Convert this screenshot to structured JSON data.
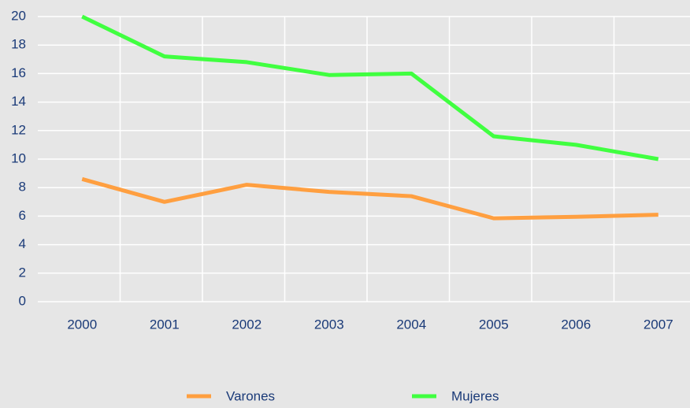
{
  "chart_data": {
    "type": "line",
    "categories": [
      "2000",
      "2001",
      "2002",
      "2003",
      "2004",
      "2005",
      "2006",
      "2007"
    ],
    "series": [
      {
        "name": "Varones",
        "color": "#ff9f40",
        "values": [
          8.6,
          7.0,
          8.2,
          7.7,
          7.4,
          5.85,
          5.95,
          6.1
        ]
      },
      {
        "name": "Mujeres",
        "color": "#40ff40",
        "values": [
          20,
          17.2,
          16.8,
          15.9,
          16.0,
          11.6,
          11.0,
          10.0
        ]
      }
    ],
    "ylim": [
      0,
      20
    ],
    "yticks": [
      0,
      2,
      4,
      6,
      8,
      10,
      12,
      14,
      16,
      18,
      20
    ],
    "grid": true
  }
}
